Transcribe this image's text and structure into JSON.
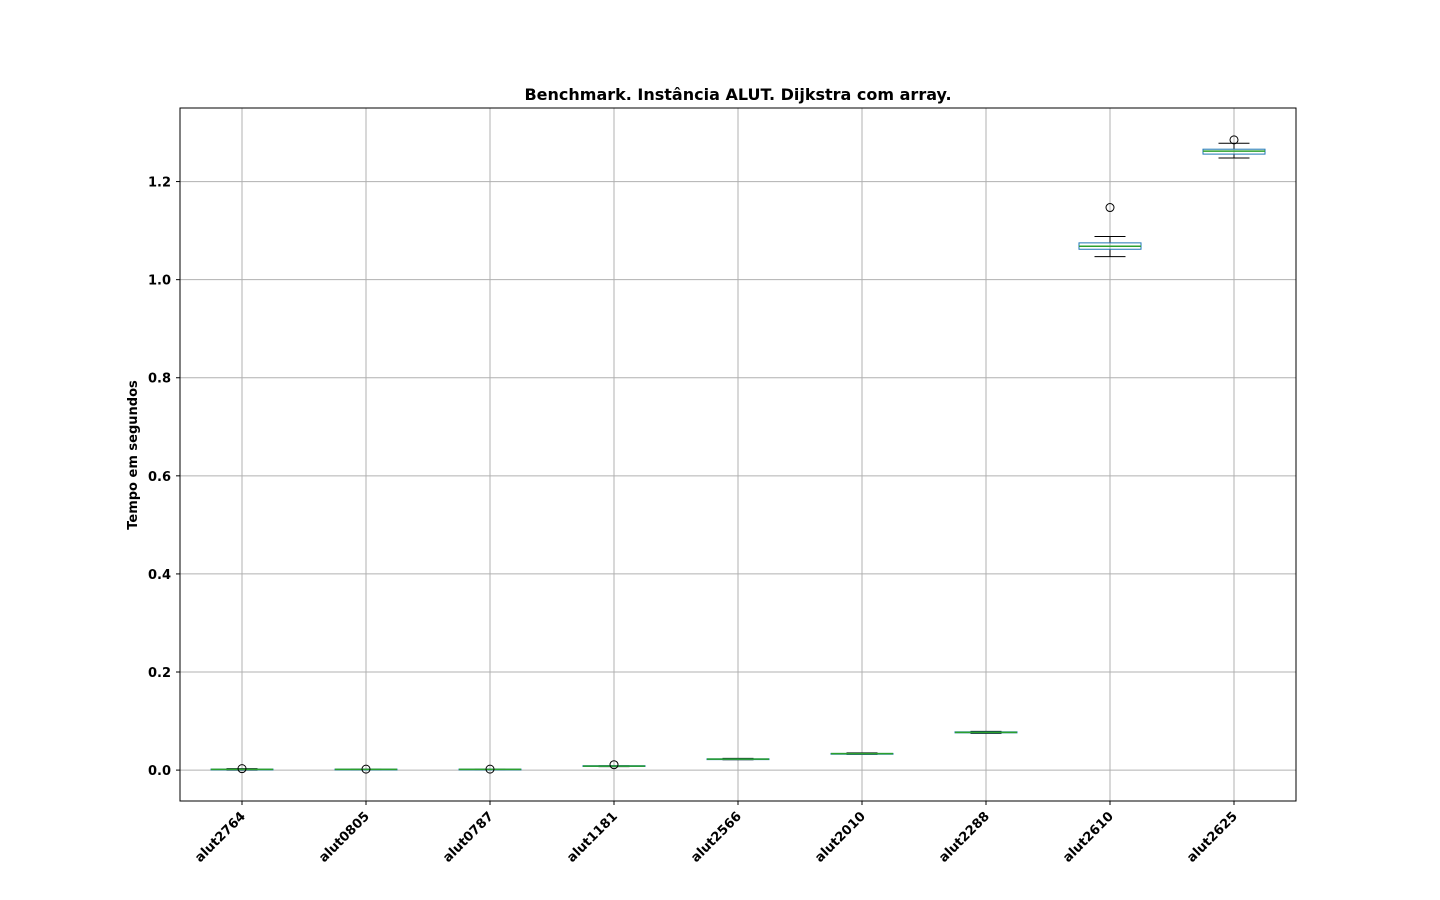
{
  "chart_data": {
    "type": "boxplot",
    "title": "Benchmark. Instância ALUT. Dijkstra com array.",
    "xlabel": "",
    "ylabel": "Tempo em segundos",
    "ylim": [
      -0.063,
      1.35
    ],
    "yticks": [
      0.0,
      0.2,
      0.4,
      0.6,
      0.8,
      1.0,
      1.2
    ],
    "ytick_labels": [
      "0.0",
      "0.2",
      "0.4",
      "0.6",
      "0.8",
      "1.0",
      "1.2"
    ],
    "grid": true,
    "categories": [
      "alut2764",
      "alut0805",
      "alut0787",
      "alut1181",
      "alut2566",
      "alut2010",
      "alut2288",
      "alut2610",
      "alut2625"
    ],
    "boxes": [
      {
        "whislo": 0.0,
        "q1": 0.001,
        "med": 0.0015,
        "q3": 0.002,
        "whishi": 0.003,
        "fliers": [
          0.003
        ]
      },
      {
        "whislo": 0.001,
        "q1": 0.001,
        "med": 0.0015,
        "q3": 0.002,
        "whishi": 0.002,
        "fliers": [
          0.002
        ]
      },
      {
        "whislo": 0.001,
        "q1": 0.001,
        "med": 0.0015,
        "q3": 0.002,
        "whishi": 0.002,
        "fliers": [
          0.002
        ]
      },
      {
        "whislo": 0.007,
        "q1": 0.008,
        "med": 0.008,
        "q3": 0.009,
        "whishi": 0.009,
        "fliers": [
          0.011
        ]
      },
      {
        "whislo": 0.021,
        "q1": 0.022,
        "med": 0.0225,
        "q3": 0.023,
        "whishi": 0.024,
        "fliers": []
      },
      {
        "whislo": 0.032,
        "q1": 0.033,
        "med": 0.0335,
        "q3": 0.034,
        "whishi": 0.035,
        "fliers": []
      },
      {
        "whislo": 0.075,
        "q1": 0.076,
        "med": 0.077,
        "q3": 0.078,
        "whishi": 0.079,
        "fliers": []
      },
      {
        "whislo": 1.047,
        "q1": 1.062,
        "med": 1.068,
        "q3": 1.075,
        "whishi": 1.088,
        "fliers": [
          1.147
        ]
      },
      {
        "whislo": 1.248,
        "q1": 1.256,
        "med": 1.262,
        "q3": 1.266,
        "whishi": 1.278,
        "fliers": [
          1.285
        ]
      }
    ],
    "colors": {
      "box": "#1f77b4",
      "median": "#2ca02c",
      "whisker": "#000000",
      "flier": "#000000",
      "grid": "#b0b0b0"
    }
  }
}
